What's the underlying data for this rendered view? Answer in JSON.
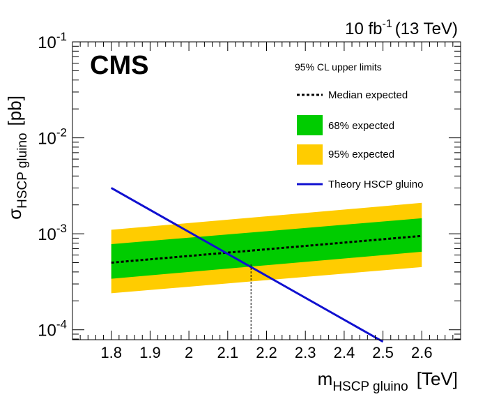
{
  "header": {
    "lumi_prefix": "10 fb",
    "lumi_exp": "-1",
    "energy": "(13 TeV)"
  },
  "experiment_label": "CMS",
  "colors": {
    "band68": "#00cc00",
    "band95": "#ffcc00",
    "theory": "#1010d0",
    "median": "#000000"
  },
  "chart_data": {
    "type": "line",
    "title": "",
    "xlabel": {
      "main": "m",
      "sub": "HSCP gluino",
      "unit": "[TeV]"
    },
    "ylabel": {
      "main": "σ",
      "sub": "HSCP gluino",
      "unit": "[pb]"
    },
    "xlim": [
      1.7,
      2.7
    ],
    "ylim": [
      7.87e-05,
      0.1
    ],
    "yscale": "log",
    "grid": false,
    "legend_placement": "top-right",
    "legend_title": "95% CL upper limits",
    "x_ticks": [
      "1.8",
      "1.9",
      "2",
      "2.1",
      "2.2",
      "2.3",
      "2.4",
      "2.5",
      "2.6"
    ],
    "y_ticks": [
      {
        "base": "10",
        "exp": "-4",
        "value": 0.0001
      },
      {
        "base": "10",
        "exp": "-3",
        "value": 0.001
      },
      {
        "base": "10",
        "exp": "-2",
        "value": 0.01
      },
      {
        "base": "10",
        "exp": "-1",
        "value": 0.1
      }
    ],
    "x": [
      1.8,
      2.6
    ],
    "series": [
      {
        "name": "Median expected",
        "style": "dashed",
        "values": [
          0.0005,
          0.00095
        ]
      },
      {
        "name": "68% expected",
        "style": "band",
        "lower": [
          0.00034,
          0.00065
        ],
        "upper": [
          0.00078,
          0.00145
        ]
      },
      {
        "name": "95% expected",
        "style": "band",
        "lower": [
          0.00024,
          0.00045
        ],
        "upper": [
          0.0011,
          0.0021
        ]
      },
      {
        "name": "Theory HSCP gluino",
        "style": "line",
        "x": [
          1.8,
          2.5
        ],
        "values": [
          0.003,
          7.5e-05
        ]
      }
    ],
    "annotations": [
      {
        "type": "vertical-dashed-line",
        "x": 2.16,
        "y_from": 7.87e-05,
        "y_to": 0.00048
      }
    ]
  }
}
